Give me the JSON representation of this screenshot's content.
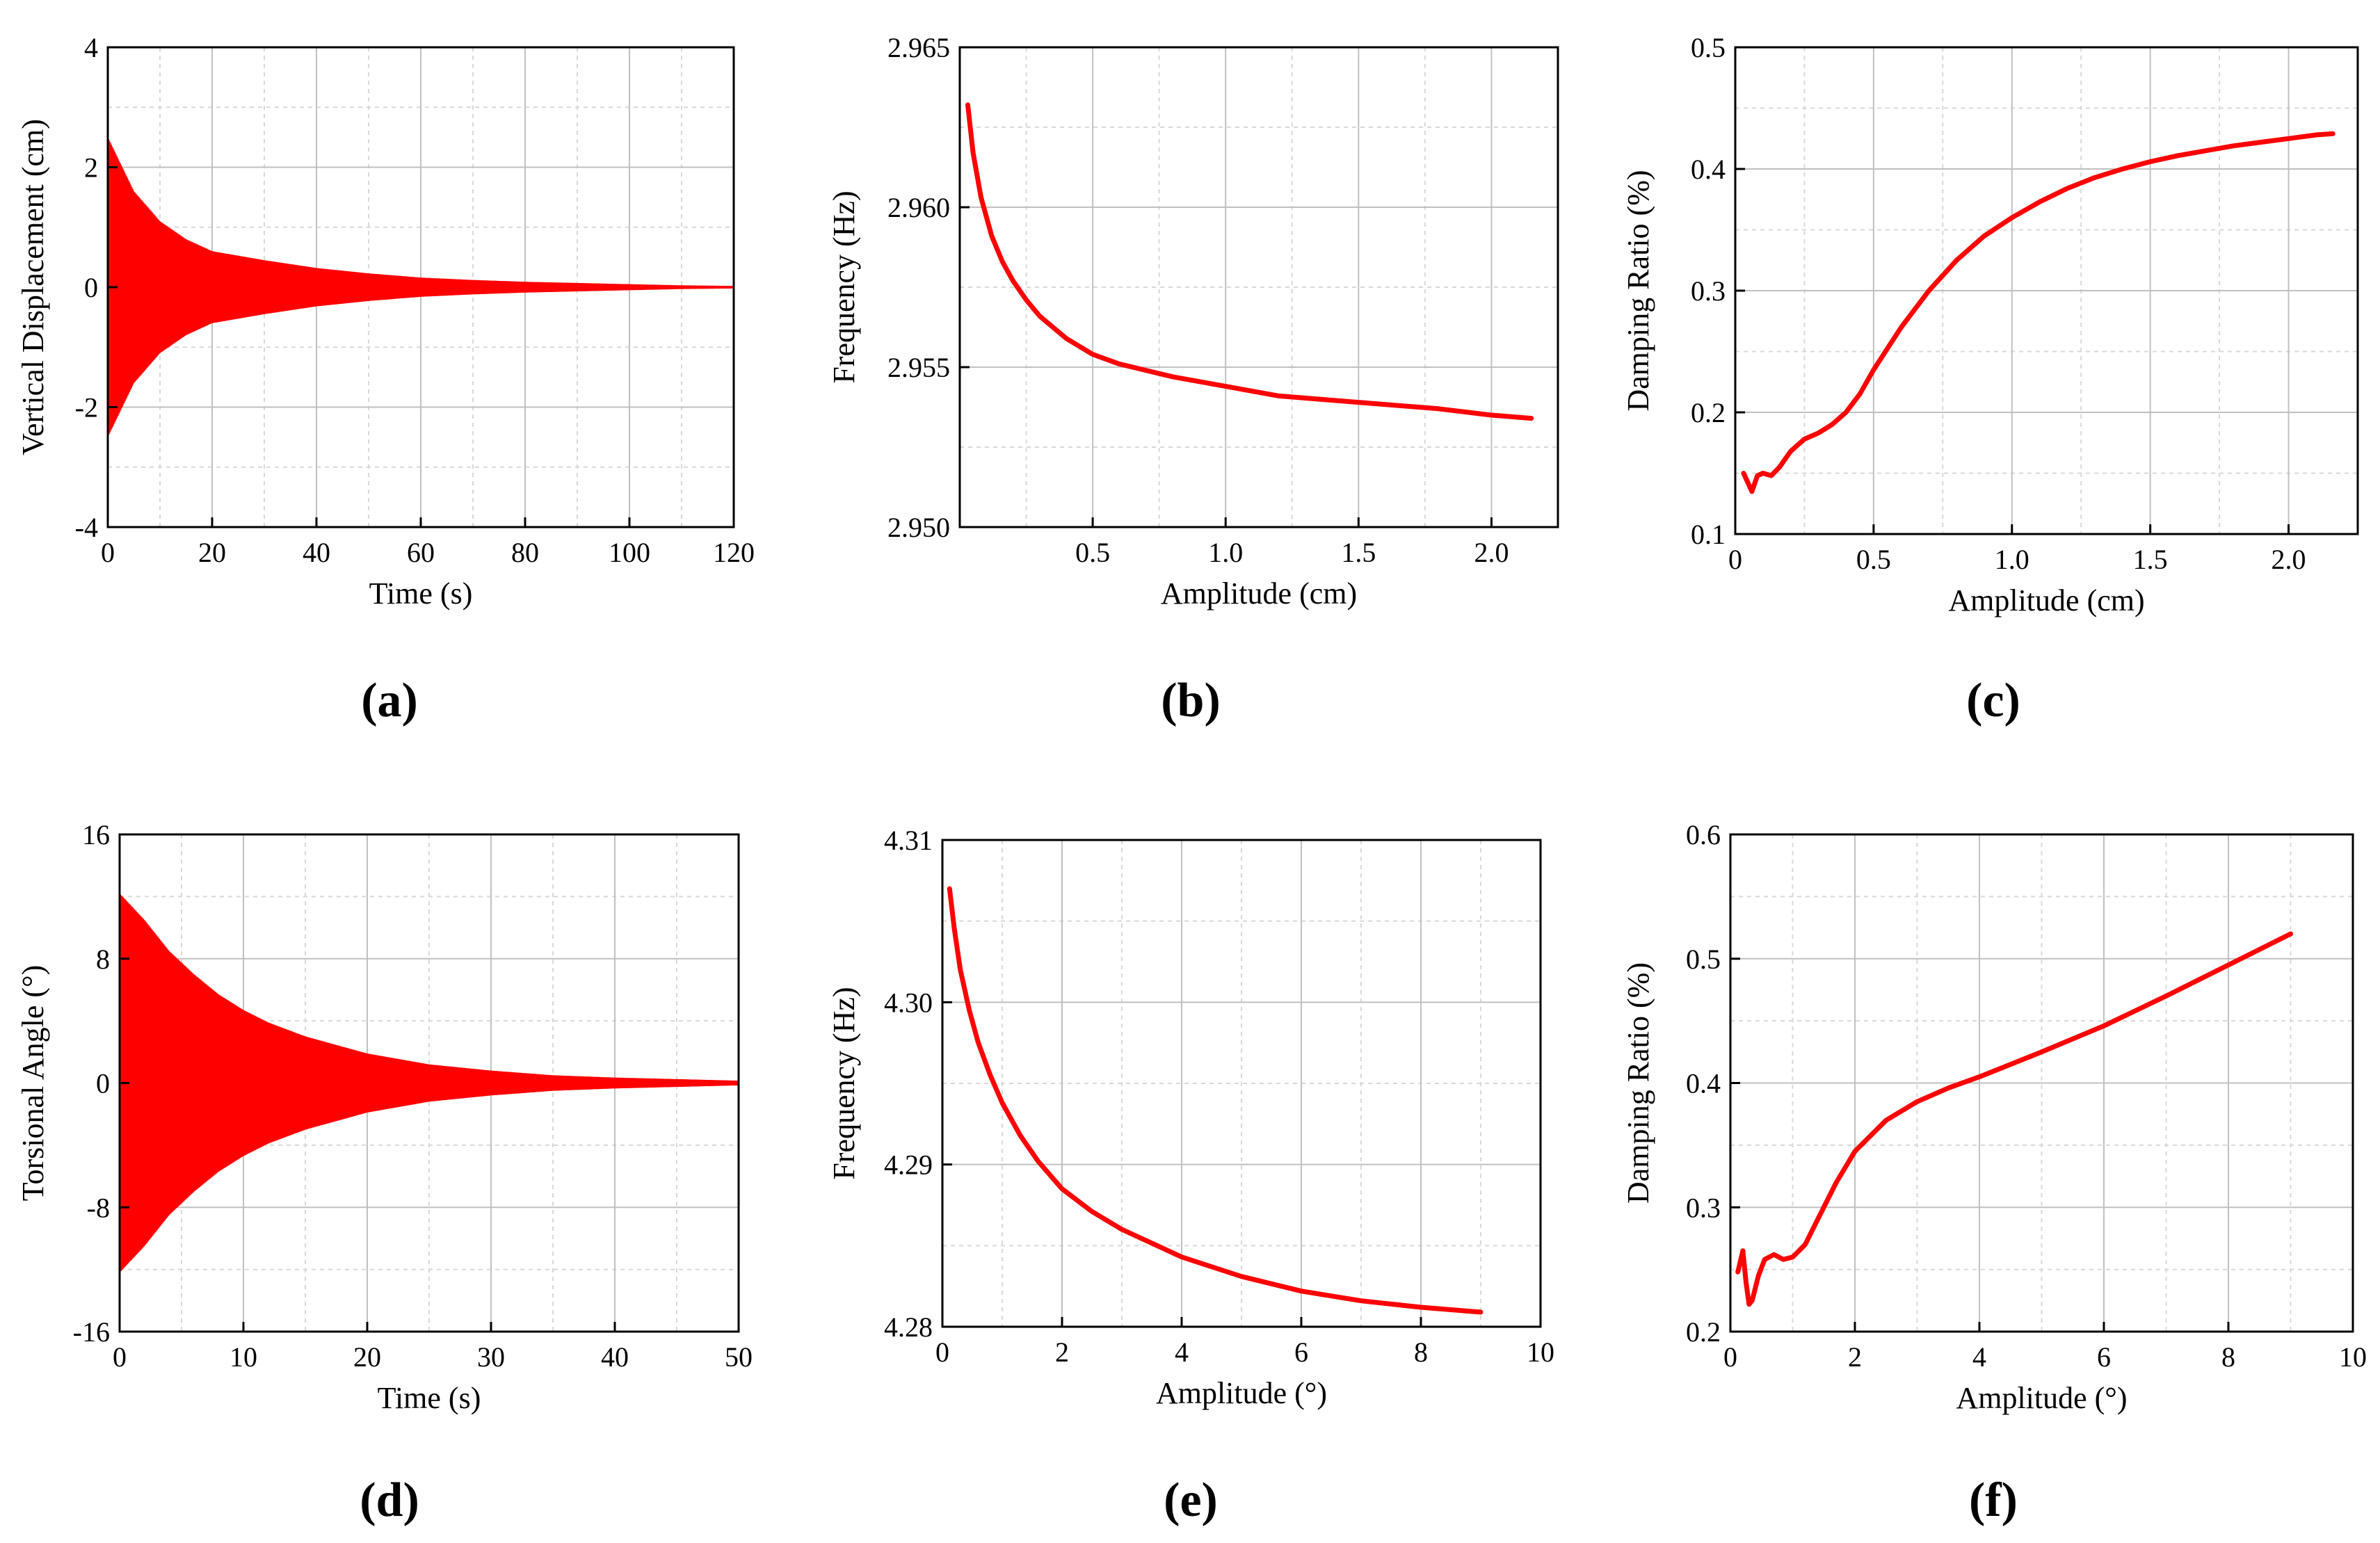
{
  "figure": {
    "panel_labels": [
      "(a)",
      "(b)",
      "(c)",
      "(d)",
      "(e)",
      "(f)"
    ],
    "series_color": "#ff0000",
    "grid_color": "#c0c0c0"
  },
  "chart_data": [
    {
      "id": "a",
      "type": "line",
      "title": "",
      "xlabel": "Time (s)",
      "ylabel": "Vertical Displacement (cm)",
      "xlim": [
        0,
        120
      ],
      "ylim": [
        -4,
        4
      ],
      "xticks": [
        0,
        20,
        40,
        60,
        80,
        100,
        120
      ],
      "yticks": [
        -4,
        -2,
        0,
        2,
        4
      ],
      "xtick_labels": [
        "0",
        "20",
        "40",
        "60",
        "80",
        "100",
        "120"
      ],
      "ytick_labels": [
        "-4",
        "-2",
        "0",
        "2",
        "4"
      ],
      "grid": true,
      "series": [
        {
          "name": "vertical displacement",
          "kind": "decaying-oscillation",
          "envelope": {
            "x": [
              0,
              5,
              10,
              15,
              20,
              30,
              40,
              50,
              60,
              70,
              80,
              90,
              100,
              110,
              120
            ],
            "y": [
              2.5,
              1.6,
              1.1,
              0.8,
              0.6,
              0.45,
              0.32,
              0.23,
              0.16,
              0.12,
              0.09,
              0.07,
              0.05,
              0.03,
              0.02
            ]
          }
        }
      ]
    },
    {
      "id": "b",
      "type": "line",
      "title": "",
      "xlabel": "Amplitude (cm)",
      "ylabel": "Frequency (Hz)",
      "xlim": [
        0,
        2.25
      ],
      "ylim": [
        2.95,
        2.965
      ],
      "xticks": [
        0.5,
        1.0,
        1.5,
        2.0
      ],
      "yticks": [
        2.95,
        2.955,
        2.96,
        2.965
      ],
      "xtick_labels": [
        "0.5",
        "1.0",
        "1.5",
        "2.0"
      ],
      "ytick_labels": [
        "2.950",
        "2.955",
        "2.960",
        "2.965"
      ],
      "grid": true,
      "series": [
        {
          "name": "frequency",
          "x": [
            0.03,
            0.05,
            0.08,
            0.12,
            0.16,
            0.2,
            0.25,
            0.3,
            0.4,
            0.5,
            0.6,
            0.8,
            1.0,
            1.2,
            1.5,
            1.8,
            2.0,
            2.15
          ],
          "y": [
            2.9632,
            2.9617,
            2.9603,
            2.9591,
            2.9583,
            2.9577,
            2.9571,
            2.9566,
            2.9559,
            2.9554,
            2.9551,
            2.9547,
            2.9544,
            2.9541,
            2.9539,
            2.9537,
            2.9535,
            2.9534
          ]
        }
      ]
    },
    {
      "id": "c",
      "type": "line",
      "title": "",
      "xlabel": "Amplitude (cm)",
      "ylabel": "Damping Ratio (%)",
      "xlim": [
        0,
        2.25
      ],
      "ylim": [
        0.1,
        0.5
      ],
      "xticks": [
        0,
        0.5,
        1.0,
        1.5,
        2.0
      ],
      "yticks": [
        0.1,
        0.2,
        0.3,
        0.4,
        0.5
      ],
      "xtick_labels": [
        "0",
        "0.5",
        "1.0",
        "1.5",
        "2.0"
      ],
      "ytick_labels": [
        "0.1",
        "0.2",
        "0.3",
        "0.4",
        "0.5"
      ],
      "grid": true,
      "series": [
        {
          "name": "damping ratio",
          "x": [
            0.03,
            0.05,
            0.06,
            0.08,
            0.1,
            0.13,
            0.16,
            0.2,
            0.25,
            0.3,
            0.35,
            0.4,
            0.45,
            0.5,
            0.6,
            0.7,
            0.8,
            0.9,
            1.0,
            1.1,
            1.2,
            1.3,
            1.4,
            1.5,
            1.6,
            1.7,
            1.8,
            1.9,
            2.0,
            2.1,
            2.16
          ],
          "y": [
            0.15,
            0.14,
            0.135,
            0.148,
            0.15,
            0.148,
            0.155,
            0.168,
            0.178,
            0.183,
            0.19,
            0.2,
            0.215,
            0.235,
            0.27,
            0.3,
            0.325,
            0.345,
            0.36,
            0.373,
            0.384,
            0.393,
            0.4,
            0.406,
            0.411,
            0.415,
            0.419,
            0.422,
            0.425,
            0.428,
            0.429
          ]
        }
      ]
    },
    {
      "id": "d",
      "type": "line",
      "title": "",
      "xlabel": "Time (s)",
      "ylabel": "Torsional Angle (°)",
      "xlim": [
        0,
        50
      ],
      "ylim": [
        -16,
        16
      ],
      "xticks": [
        0,
        10,
        20,
        30,
        40,
        50
      ],
      "yticks": [
        -16,
        -8,
        0,
        8,
        16
      ],
      "xtick_labels": [
        "0",
        "10",
        "20",
        "30",
        "40",
        "50"
      ],
      "ytick_labels": [
        "-16",
        "-8",
        "0",
        "8",
        "16"
      ],
      "grid": true,
      "series": [
        {
          "name": "torsional angle",
          "kind": "decaying-oscillation",
          "envelope": {
            "x": [
              0,
              2,
              4,
              6,
              8,
              10,
              12,
              15,
              20,
              25,
              30,
              35,
              40,
              45,
              50
            ],
            "y": [
              12.2,
              10.5,
              8.5,
              7.0,
              5.7,
              4.7,
              3.9,
              3.0,
              1.9,
              1.2,
              0.8,
              0.5,
              0.35,
              0.25,
              0.15
            ]
          }
        }
      ]
    },
    {
      "id": "e",
      "type": "line",
      "title": "",
      "xlabel": "Amplitude (°)",
      "ylabel": "Frequency (Hz)",
      "xlim": [
        0,
        10
      ],
      "ylim": [
        4.28,
        4.31
      ],
      "xticks": [
        0,
        2,
        4,
        6,
        8,
        10
      ],
      "yticks": [
        4.28,
        4.29,
        4.3,
        4.31
      ],
      "xtick_labels": [
        "0",
        "2",
        "4",
        "6",
        "8",
        "10"
      ],
      "ytick_labels": [
        "4.28",
        "4.29",
        "4.30",
        "4.31"
      ],
      "grid": true,
      "series": [
        {
          "name": "frequency",
          "x": [
            0.12,
            0.2,
            0.3,
            0.45,
            0.6,
            0.8,
            1.0,
            1.3,
            1.6,
            2.0,
            2.5,
            3.0,
            4.0,
            5.0,
            6.0,
            7.0,
            8.0,
            9.0
          ],
          "y": [
            4.307,
            4.3045,
            4.302,
            4.2995,
            4.2975,
            4.2955,
            4.2938,
            4.2918,
            4.2902,
            4.2885,
            4.2871,
            4.286,
            4.2843,
            4.2831,
            4.2822,
            4.2816,
            4.2812,
            4.2809
          ]
        }
      ]
    },
    {
      "id": "f",
      "type": "line",
      "title": "",
      "xlabel": "Amplitude (°)",
      "ylabel": "Damping Ratio (%)",
      "xlim": [
        0,
        10
      ],
      "ylim": [
        0.2,
        0.6
      ],
      "xticks": [
        0,
        2,
        4,
        6,
        8,
        10
      ],
      "yticks": [
        0.2,
        0.3,
        0.4,
        0.5,
        0.6
      ],
      "xtick_labels": [
        "0",
        "2",
        "4",
        "6",
        "8",
        "10"
      ],
      "ytick_labels": [
        "0.2",
        "0.3",
        "0.4",
        "0.5",
        "0.6"
      ],
      "grid": true,
      "series": [
        {
          "name": "damping ratio",
          "x": [
            0.12,
            0.2,
            0.25,
            0.3,
            0.35,
            0.45,
            0.55,
            0.7,
            0.85,
            1.0,
            1.2,
            1.4,
            1.7,
            2.0,
            2.5,
            3.0,
            3.5,
            4.0,
            5.0,
            6.0,
            7.0,
            8.0,
            9.0
          ],
          "y": [
            0.248,
            0.265,
            0.24,
            0.222,
            0.225,
            0.245,
            0.258,
            0.262,
            0.258,
            0.26,
            0.27,
            0.29,
            0.32,
            0.345,
            0.37,
            0.385,
            0.396,
            0.405,
            0.425,
            0.446,
            0.47,
            0.495,
            0.52
          ]
        }
      ]
    }
  ]
}
